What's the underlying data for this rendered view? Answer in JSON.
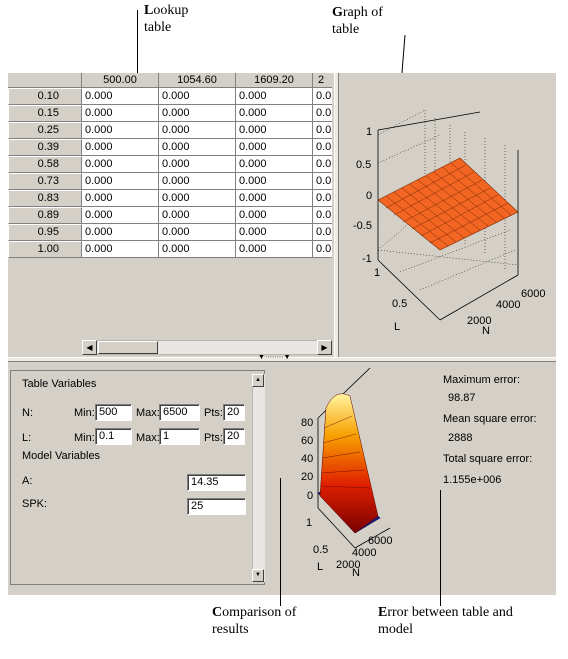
{
  "annotations": {
    "lookup_first": "L",
    "lookup_rest": "ookup",
    "lookup_line2": "table",
    "graph_first": "G",
    "graph_rest": "raph of",
    "graph_line2": "table",
    "compare_first": "C",
    "compare_rest": "omparison of",
    "compare_line2": "results",
    "error_first": "E",
    "error_rest": "rror between table and",
    "error_line2": "model"
  },
  "table": {
    "col_headers": [
      "500.00",
      "1054.60",
      "1609.20",
      "2"
    ],
    "row_headers": [
      "0.10",
      "0.15",
      "0.25",
      "0.39",
      "0.58",
      "0.73",
      "0.83",
      "0.89",
      "0.95",
      "1.00"
    ],
    "cell_value": "0.000",
    "cell_value_clipped": "0.0("
  },
  "graph": {
    "z_ticks": [
      "1",
      "0.5",
      "0",
      "-0.5",
      "-1"
    ],
    "l_ticks": [
      "1",
      "0.5"
    ],
    "l_label": "L",
    "n_ticks": [
      "6000",
      "4000",
      "2000"
    ],
    "n_label": "N",
    "surface_color": "#f26522"
  },
  "variables": {
    "table_title": "Table Variables",
    "n_label": "N:",
    "n_min_label": "Min:",
    "n_min": "500",
    "n_max_label": "Max:",
    "n_max": "6500",
    "n_pts_label": "Pts:",
    "n_pts": "20",
    "l_label": "L:",
    "l_min_label": "Min:",
    "l_min": "0.1",
    "l_max_label": "Max:",
    "l_max": "1",
    "l_pts_label": "Pts:",
    "l_pts": "20",
    "model_title": "Model Variables",
    "a_label": "A:",
    "a_value": "14.35",
    "spk_label": "SPK:",
    "spk_value": "25"
  },
  "comparison": {
    "z_ticks": [
      "80",
      "60",
      "40",
      "20",
      "0"
    ],
    "l_ticks": [
      "1",
      "0.5"
    ],
    "l_label": "L",
    "n_ticks": [
      "6000",
      "4000",
      "2000"
    ],
    "n_label": "N"
  },
  "errors": {
    "max_label": "Maximum error:",
    "max_value": "98.87",
    "mean_label": "Mean square error:",
    "mean_value": "2888",
    "total_label": "Total square error:",
    "total_value": "1.155e+006"
  }
}
